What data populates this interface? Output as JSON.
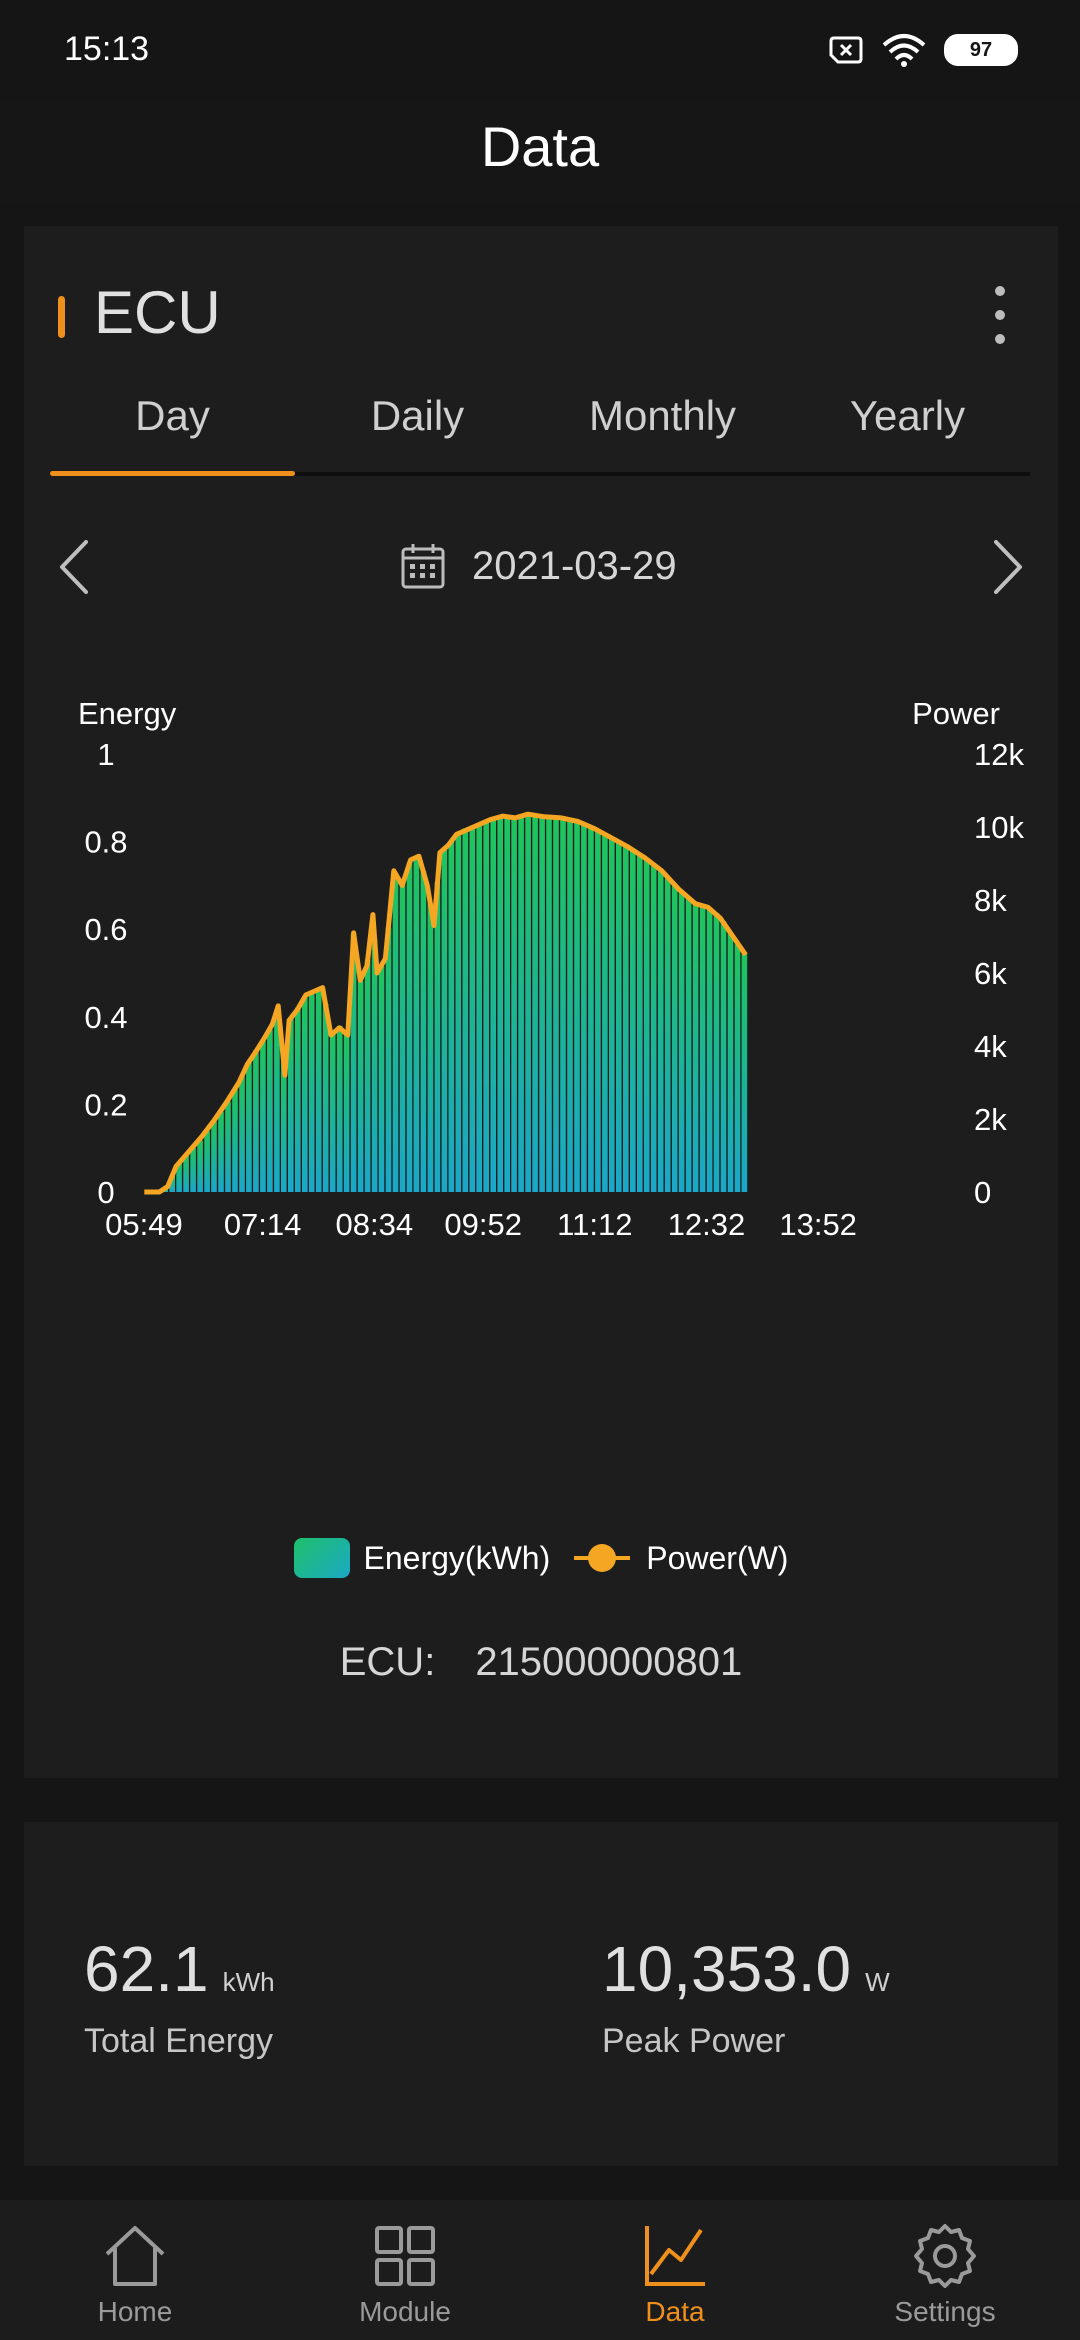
{
  "status": {
    "time": "15:13",
    "battery": "97"
  },
  "header": {
    "title": "Data"
  },
  "ecu_card": {
    "title": "ECU",
    "tabs": [
      {
        "label": "Day",
        "active": true
      },
      {
        "label": "Daily",
        "active": false
      },
      {
        "label": "Monthly",
        "active": false
      },
      {
        "label": "Yearly",
        "active": false
      }
    ],
    "date": "2021-03-29",
    "legend": {
      "energy": "Energy(kWh)",
      "power": "Power(W)"
    },
    "ecu_label": "ECU:",
    "ecu_id": "215000000801"
  },
  "chart_data": {
    "type": "bar+line",
    "left_axis_label": "Energy",
    "right_axis_label": "Power",
    "left_ticks": [
      "0",
      "0.2",
      "0.4",
      "0.6",
      "0.8",
      "1"
    ],
    "right_ticks": [
      "0",
      "2k",
      "4k",
      "6k",
      "8k",
      "10k",
      "12k"
    ],
    "x_ticks": [
      "05:49",
      "07:14",
      "08:34",
      "09:52",
      "11:12",
      "12:32",
      "13:52"
    ],
    "x_range_hours": [
      5.817,
      15.25
    ],
    "ylim_energy": [
      0,
      1
    ],
    "ylim_power": [
      0,
      12000
    ],
    "colors": {
      "line": "#f5a623",
      "bar_top": "#1fc45c",
      "bar_bottom": "#1aa7c9"
    },
    "power_series": [
      [
        5.82,
        0
      ],
      [
        6.0,
        0
      ],
      [
        6.1,
        150
      ],
      [
        6.2,
        700
      ],
      [
        6.35,
        1100
      ],
      [
        6.5,
        1500
      ],
      [
        6.65,
        1950
      ],
      [
        6.8,
        2450
      ],
      [
        6.95,
        3000
      ],
      [
        7.05,
        3500
      ],
      [
        7.14,
        3800
      ],
      [
        7.25,
        4200
      ],
      [
        7.35,
        4600
      ],
      [
        7.42,
        5100
      ],
      [
        7.5,
        3200
      ],
      [
        7.55,
        4700
      ],
      [
        7.65,
        5000
      ],
      [
        7.75,
        5400
      ],
      [
        7.85,
        5500
      ],
      [
        7.95,
        5600
      ],
      [
        8.05,
        4300
      ],
      [
        8.15,
        4500
      ],
      [
        8.25,
        4300
      ],
      [
        8.32,
        7100
      ],
      [
        8.4,
        5800
      ],
      [
        8.48,
        6200
      ],
      [
        8.55,
        7600
      ],
      [
        8.6,
        6000
      ],
      [
        8.7,
        6400
      ],
      [
        8.8,
        8800
      ],
      [
        8.9,
        8400
      ],
      [
        9.0,
        9100
      ],
      [
        9.1,
        9200
      ],
      [
        9.2,
        8400
      ],
      [
        9.28,
        7300
      ],
      [
        9.35,
        9300
      ],
      [
        9.45,
        9500
      ],
      [
        9.55,
        9800
      ],
      [
        9.65,
        9900
      ],
      [
        9.8,
        10050
      ],
      [
        9.95,
        10200
      ],
      [
        10.1,
        10300
      ],
      [
        10.25,
        10250
      ],
      [
        10.4,
        10350
      ],
      [
        10.6,
        10280
      ],
      [
        10.8,
        10250
      ],
      [
        11.0,
        10150
      ],
      [
        11.2,
        9950
      ],
      [
        11.4,
        9700
      ],
      [
        11.6,
        9450
      ],
      [
        11.8,
        9150
      ],
      [
        12.0,
        8800
      ],
      [
        12.2,
        8300
      ],
      [
        12.4,
        7900
      ],
      [
        12.55,
        7800
      ],
      [
        12.7,
        7500
      ],
      [
        12.85,
        7000
      ],
      [
        13.0,
        6500
      ]
    ],
    "energy_series": [
      [
        5.82,
        0
      ],
      [
        6.0,
        0
      ],
      [
        6.1,
        0.01
      ],
      [
        6.2,
        0.06
      ],
      [
        6.35,
        0.09
      ],
      [
        6.5,
        0.12
      ],
      [
        6.65,
        0.16
      ],
      [
        6.8,
        0.2
      ],
      [
        6.95,
        0.25
      ],
      [
        7.05,
        0.29
      ],
      [
        7.14,
        0.32
      ],
      [
        7.25,
        0.35
      ],
      [
        7.35,
        0.38
      ],
      [
        7.42,
        0.42
      ],
      [
        7.5,
        0.27
      ],
      [
        7.55,
        0.39
      ],
      [
        7.65,
        0.42
      ],
      [
        7.75,
        0.45
      ],
      [
        7.85,
        0.46
      ],
      [
        7.95,
        0.47
      ],
      [
        8.05,
        0.36
      ],
      [
        8.15,
        0.38
      ],
      [
        8.25,
        0.36
      ],
      [
        8.32,
        0.59
      ],
      [
        8.4,
        0.48
      ],
      [
        8.48,
        0.52
      ],
      [
        8.55,
        0.63
      ],
      [
        8.6,
        0.5
      ],
      [
        8.7,
        0.53
      ],
      [
        8.8,
        0.73
      ],
      [
        8.9,
        0.7
      ],
      [
        9.0,
        0.76
      ],
      [
        9.1,
        0.77
      ],
      [
        9.2,
        0.7
      ],
      [
        9.28,
        0.61
      ],
      [
        9.35,
        0.78
      ],
      [
        9.45,
        0.79
      ],
      [
        9.55,
        0.82
      ],
      [
        9.65,
        0.83
      ],
      [
        9.8,
        0.84
      ],
      [
        9.95,
        0.85
      ],
      [
        10.1,
        0.86
      ],
      [
        10.25,
        0.85
      ],
      [
        10.4,
        0.86
      ],
      [
        10.6,
        0.86
      ],
      [
        10.8,
        0.85
      ],
      [
        11.0,
        0.85
      ],
      [
        11.2,
        0.83
      ],
      [
        11.4,
        0.81
      ],
      [
        11.6,
        0.79
      ],
      [
        11.8,
        0.76
      ],
      [
        12.0,
        0.73
      ],
      [
        12.2,
        0.69
      ],
      [
        12.4,
        0.66
      ],
      [
        12.55,
        0.65
      ],
      [
        12.7,
        0.63
      ],
      [
        12.85,
        0.58
      ],
      [
        13.0,
        0.54
      ]
    ]
  },
  "stats": {
    "total_energy": {
      "value": "62.1",
      "unit": "kWh",
      "label": "Total Energy"
    },
    "peak_power": {
      "value": "10,353.0",
      "unit": "W",
      "label": "Peak Power"
    }
  },
  "bottom_nav": [
    {
      "label": "Home",
      "icon": "home-icon",
      "active": false
    },
    {
      "label": "Module",
      "icon": "grid-icon",
      "active": false
    },
    {
      "label": "Data",
      "icon": "chart-line-icon",
      "active": true
    },
    {
      "label": "Settings",
      "icon": "gear-icon",
      "active": false
    }
  ]
}
